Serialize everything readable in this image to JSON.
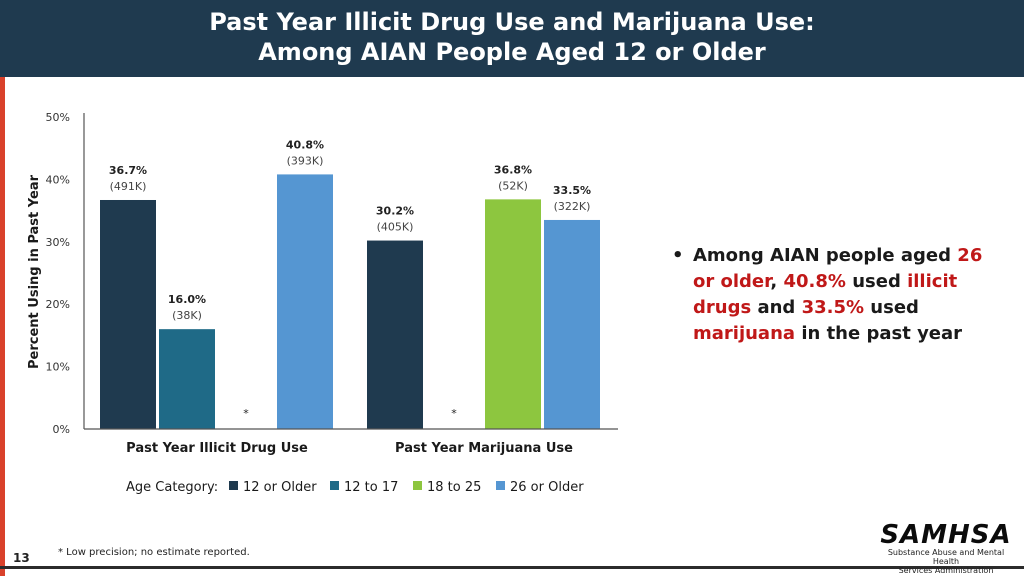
{
  "header": {
    "title_line1": "Past Year Illicit Drug Use and Marijuana Use:",
    "title_line2": "Among AIAN People Aged 12 or Older"
  },
  "chart_data": {
    "type": "bar",
    "ylabel": "Percent Using in Past Year",
    "ylim": [
      0,
      50
    ],
    "yticks": [
      "0%",
      "10%",
      "20%",
      "30%",
      "40%",
      "50%"
    ],
    "categories": [
      "Past Year Illicit Drug Use",
      "Past Year Marijuana Use"
    ],
    "legend_title": "Age Category:",
    "legend_position": "bottom",
    "series": [
      {
        "name": "12 or Older",
        "color": "#1f3a4f",
        "values": [
          36.7,
          30.2
        ],
        "labels": [
          "36.7%",
          "30.2%"
        ],
        "counts": [
          "(491K)",
          "(405K)"
        ]
      },
      {
        "name": "12 to 17",
        "color": "#1f6a87",
        "values": [
          16.0,
          null
        ],
        "labels": [
          "16.0%",
          "*"
        ],
        "counts": [
          "(38K)",
          ""
        ]
      },
      {
        "name": "18 to 25",
        "color": "#8dc63f",
        "values": [
          null,
          36.8
        ],
        "labels": [
          "*",
          "36.8%"
        ],
        "counts": [
          "",
          "(52K)"
        ]
      },
      {
        "name": "26 or Older",
        "color": "#5596d2",
        "values": [
          40.8,
          33.5
        ],
        "labels": [
          "40.8%",
          "33.5%"
        ],
        "counts": [
          "(393K)",
          "(322K)"
        ]
      }
    ]
  },
  "bullet": {
    "p1": "Among AIAN people aged ",
    "h1": "26 or older",
    "p2": ", ",
    "h2": "40.8%",
    "p3": " used ",
    "h3": "illicit drugs",
    "p4": " and ",
    "h4": "33.5%",
    "p5": " used ",
    "h5": "marijuana",
    "p6": " in the past year"
  },
  "footnote": "* Low precision; no estimate reported.",
  "page_number": "13",
  "logo": {
    "word": "SAMHSA",
    "subtitle_line1": "Substance Abuse and Mental Health",
    "subtitle_line2": "Services Administration"
  }
}
